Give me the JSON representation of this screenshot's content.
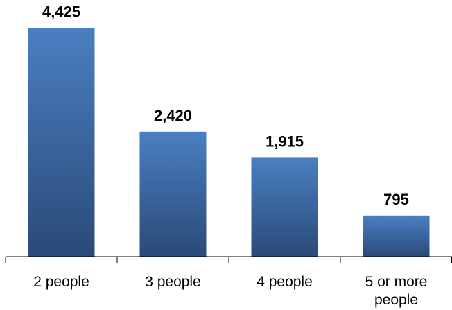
{
  "chart_data": {
    "type": "bar",
    "categories": [
      "2 people",
      "3 people",
      "4 people",
      "5 or more people"
    ],
    "category_lines": [
      [
        "2 people"
      ],
      [
        "3 people"
      ],
      [
        "4 people"
      ],
      [
        "5 or more",
        "people"
      ]
    ],
    "values": [
      4425,
      2420,
      1915,
      795
    ],
    "value_labels": [
      "4,425",
      "2,420",
      "1,915",
      "795"
    ],
    "title": "",
    "xlabel": "",
    "ylabel": "",
    "ylim": [
      0,
      4700
    ],
    "grid": false,
    "legend": "none",
    "bar_color_top": "#4a7fc1",
    "bar_color_bottom": "#2a4a78"
  }
}
